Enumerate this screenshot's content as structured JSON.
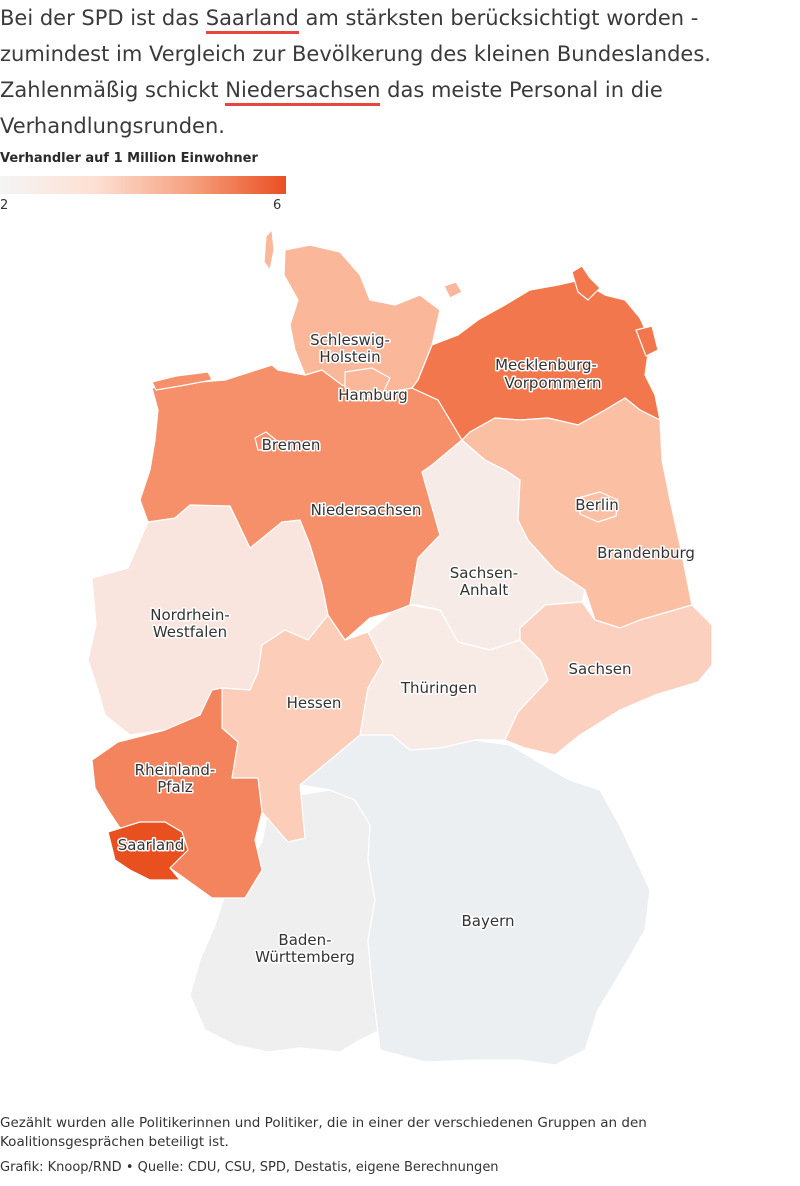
{
  "intro": {
    "p1": "Bei der SPD ist das ",
    "h1": "Saarland",
    "p2": " am stärksten berücksichtigt worden - zumindest im Vergleich zur Bevölkerung des kleinen Bundeslandes. Zahlenmäßig schickt ",
    "h2": "Niedersachsen",
    "p3": " das meiste Personal in die Verhandlungsrunden."
  },
  "legend": {
    "title": "Verhandler auf 1 Million Einwohner",
    "min": "2",
    "max": "6"
  },
  "colors": {
    "highlight_underline": "#e8453c",
    "scale_low": "#f5f5f5",
    "scale_high": "#ea4f22",
    "no_data": "#eceff2"
  },
  "states": {
    "schleswig_holstein": {
      "label_1": "Schleswig-",
      "label_2": "Holstein",
      "color": "#fbb79a"
    },
    "hamburg": {
      "label": "Hamburg",
      "color": "#fbb79a"
    },
    "mecklenburg_vorpommern": {
      "label_1": "Mecklenburg-",
      "label_2": "Vorpommern",
      "color": "#f2774d"
    },
    "bremen": {
      "label": "Bremen",
      "color": "#f6906b"
    },
    "niedersachsen": {
      "label": "Niedersachsen",
      "color": "#f6906b"
    },
    "berlin": {
      "label": "Berlin",
      "color": "#fbbfa4"
    },
    "brandenburg": {
      "label": "Brandenburg",
      "color": "#fbbfa4"
    },
    "sachsen_anhalt": {
      "label_1": "Sachsen-",
      "label_2": "Anhalt",
      "color": "#f7ebe7"
    },
    "nordrhein_westfalen": {
      "label_1": "Nordrhein-",
      "label_2": "Westfalen",
      "color": "#f9e5dd"
    },
    "sachsen": {
      "label": "Sachsen",
      "color": "#fcd0be"
    },
    "hessen": {
      "label": "Hessen",
      "color": "#fccdb8"
    },
    "thueringen": {
      "label": "Thüringen",
      "color": "#f8ebe6"
    },
    "rheinland_pfalz": {
      "label_1": "Rheinland-",
      "label_2": "Pfalz",
      "color": "#f4845d"
    },
    "saarland": {
      "label": "Saarland",
      "color": "#e9501f"
    },
    "bayern": {
      "label": "Bayern",
      "color": "#eceff2"
    },
    "baden_wuerttemberg": {
      "label_1": "Baden-",
      "label_2": "Württemberg",
      "color": "#efefef"
    }
  },
  "footnote": "Gezählt wurden alle Politikerinnen und Politiker, die in einer der verschiedenen Gruppen an den Koalitionsgesprächen beteiligt ist.",
  "credits": "Grafik: Knoop/RND • Quelle: CDU, CSU, SPD, Destatis, eigene Berechnungen"
}
